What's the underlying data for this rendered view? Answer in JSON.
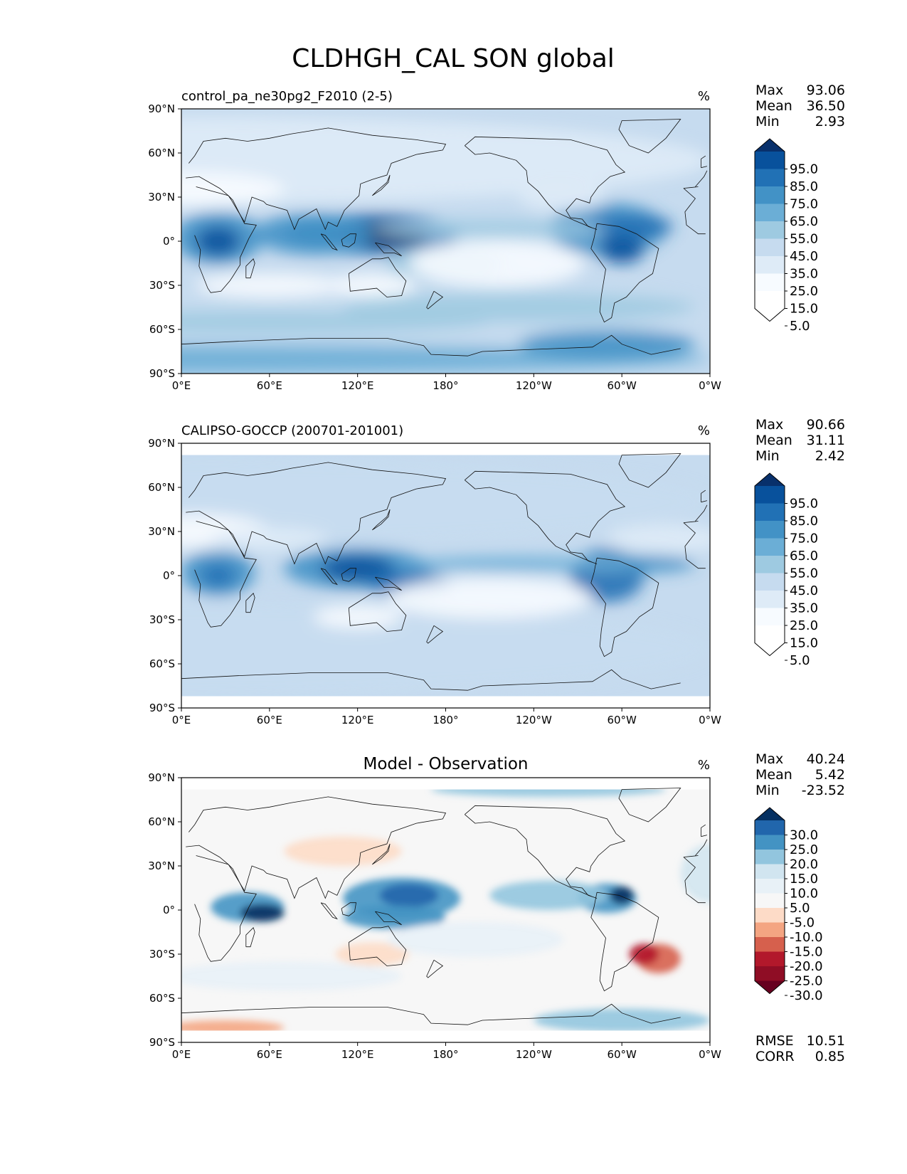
{
  "figure": {
    "title": "CLDHGH_CAL SON global"
  },
  "panels": [
    {
      "title_left": "control_pa_ne30pg2_F2010 (2-5)",
      "title_center": "",
      "units": "%",
      "stats": [
        [
          "Max",
          "93.06"
        ],
        [
          "Mean",
          "36.50"
        ],
        [
          "Min",
          "2.93"
        ]
      ],
      "footer_stats": []
    },
    {
      "title_left": "CALIPSO-GOCCP (200701-201001)",
      "title_center": "",
      "units": "%",
      "stats": [
        [
          "Max",
          "90.66"
        ],
        [
          "Mean",
          "31.11"
        ],
        [
          "Min",
          "2.42"
        ]
      ],
      "footer_stats": []
    },
    {
      "title_left": "",
      "title_center": "Model - Observation",
      "units": "%",
      "stats": [
        [
          "Max",
          "40.24"
        ],
        [
          "Mean",
          "5.42"
        ],
        [
          "Min",
          "-23.52"
        ]
      ],
      "footer_stats": [
        [
          "RMSE",
          "10.51"
        ],
        [
          "CORR",
          "0.85"
        ]
      ]
    }
  ],
  "axes": {
    "lon_ticks": [
      "0°E",
      "60°E",
      "120°E",
      "180°",
      "120°W",
      "60°W",
      "0°W"
    ],
    "lat_ticks": [
      "90°N",
      "60°N",
      "30°N",
      "0°",
      "30°S",
      "60°S",
      "90°S"
    ]
  },
  "colorbars": {
    "field": {
      "labels": [
        "95.0",
        "85.0",
        "75.0",
        "65.0",
        "55.0",
        "45.0",
        "35.0",
        "25.0",
        "15.0",
        "5.0"
      ],
      "colors": [
        "#08306b",
        "#08519c",
        "#2171b5",
        "#4292c6",
        "#6baed6",
        "#9ecae1",
        "#c6dbef",
        "#deebf7",
        "#f7fbff",
        "#ffffff",
        "#ffffff"
      ]
    },
    "diff": {
      "labels": [
        "30.0",
        "25.0",
        "20.0",
        "15.0",
        "10.0",
        "5.0",
        "-5.0",
        "-10.0",
        "-15.0",
        "-20.0",
        "-25.0",
        "-30.0"
      ],
      "colors": [
        "#053061",
        "#2166ac",
        "#4393c3",
        "#92c5de",
        "#d1e5f0",
        "#e8f1f7",
        "#f7f7f7",
        "#fddbc7",
        "#f4a582",
        "#d6604d",
        "#b2182b",
        "#8f0d25",
        "#67001f"
      ]
    }
  },
  "chart_data": [
    {
      "type": "heatmap",
      "title": "control_pa_ne30pg2_F2010 (2-5)",
      "variable": "CLDHGH_CAL",
      "season": "SON",
      "units": "%",
      "xlim": [
        0,
        360
      ],
      "ylim": [
        -90,
        90
      ],
      "levels": [
        5,
        15,
        25,
        35,
        45,
        55,
        65,
        75,
        85,
        95
      ],
      "max": 93.06,
      "mean": 36.5,
      "min": 2.93
    },
    {
      "type": "heatmap",
      "title": "CALIPSO-GOCCP (200701-201001)",
      "variable": "CLDHGH_CAL",
      "season": "SON",
      "units": "%",
      "xlim": [
        0,
        360
      ],
      "ylim": [
        -90,
        90
      ],
      "levels": [
        5,
        15,
        25,
        35,
        45,
        55,
        65,
        75,
        85,
        95
      ],
      "max": 90.66,
      "mean": 31.11,
      "min": 2.42
    },
    {
      "type": "heatmap",
      "title": "Model - Observation",
      "units": "%",
      "xlim": [
        0,
        360
      ],
      "ylim": [
        -90,
        90
      ],
      "levels": [
        -30,
        -25,
        -20,
        -15,
        -10,
        -5,
        5,
        10,
        15,
        20,
        25,
        30
      ],
      "max": 40.24,
      "mean": 5.42,
      "min": -23.52,
      "rmse": 10.51,
      "corr": 0.85
    }
  ]
}
